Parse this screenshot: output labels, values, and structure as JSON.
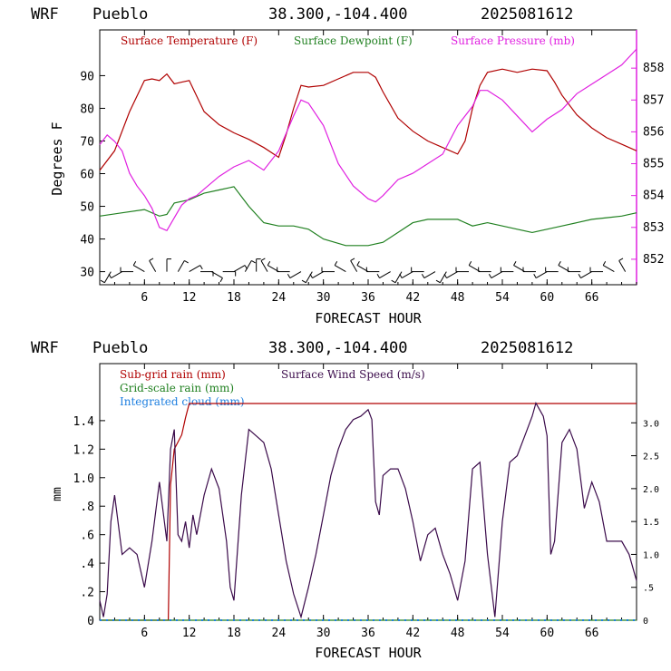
{
  "chart_data": [
    {
      "type": "line",
      "header": {
        "model": "WRF",
        "station": "Pueblo",
        "coords": "38.300,-104.400",
        "run": "2025081612"
      },
      "xlabel": "FORECAST HOUR",
      "ylabel": "Degrees F",
      "xlim": [
        0,
        72
      ],
      "xticks": [
        6,
        12,
        18,
        24,
        30,
        36,
        42,
        48,
        54,
        60,
        66
      ],
      "ylim": [
        26,
        104
      ],
      "yticks": [
        30,
        40,
        50,
        60,
        70,
        80,
        90
      ],
      "y2lim": [
        851.2,
        859.2
      ],
      "y2ticks": [
        852,
        853,
        854,
        855,
        856,
        857,
        858
      ],
      "colors": {
        "temperature": "#b00000",
        "dewpoint": "#208020",
        "pressure": "#e020e0",
        "barbs": "#000000"
      },
      "series": [
        {
          "name": "Surface Temperature (F)",
          "axis": "left",
          "x": [
            0,
            2,
            4,
            6,
            7,
            8,
            9,
            10,
            11,
            12,
            14,
            16,
            18,
            20,
            22,
            24,
            25,
            26,
            27,
            28,
            30,
            32,
            34,
            36,
            37,
            38,
            40,
            42,
            44,
            46,
            48,
            49,
            50,
            51,
            52,
            54,
            56,
            58,
            60,
            61,
            62,
            64,
            66,
            68,
            70,
            72
          ],
          "y": [
            61,
            67,
            79,
            88.5,
            89,
            88.5,
            90.5,
            87.5,
            88,
            88.5,
            79,
            75,
            72.5,
            70.5,
            68,
            65,
            72,
            80,
            87,
            86.5,
            87,
            89,
            91,
            91,
            89.5,
            85,
            77,
            73,
            70,
            68,
            66,
            70,
            80,
            87,
            91,
            92,
            91,
            92,
            91.5,
            88,
            84,
            78,
            74,
            71,
            69,
            67
          ]
        },
        {
          "name": "Surface Dewpoint (F)",
          "axis": "left",
          "x": [
            0,
            3,
            6,
            8,
            9,
            10,
            12,
            14,
            16,
            18,
            20,
            22,
            24,
            26,
            28,
            30,
            33,
            36,
            38,
            40,
            42,
            44,
            46,
            48,
            50,
            52,
            54,
            56,
            58,
            60,
            62,
            64,
            66,
            68,
            70,
            72
          ],
          "y": [
            47,
            48,
            49,
            47,
            47.5,
            51,
            52,
            54,
            55,
            56,
            50,
            45,
            44,
            44,
            43,
            40,
            38,
            38,
            39,
            42,
            45,
            46,
            46,
            46,
            44,
            45,
            44,
            43,
            42,
            43,
            44,
            45,
            46,
            46.5,
            47,
            48
          ]
        },
        {
          "name": "Surface Pressure (mb)",
          "axis": "right",
          "x": [
            0,
            1,
            2,
            3,
            4,
            5,
            6,
            7,
            8,
            9,
            10,
            11,
            12,
            13,
            14,
            16,
            18,
            20,
            22,
            24,
            26,
            27,
            28,
            30,
            32,
            34,
            36,
            37,
            38,
            40,
            42,
            44,
            46,
            48,
            50,
            51,
            52,
            54,
            56,
            58,
            60,
            62,
            64,
            66,
            68,
            70,
            72
          ],
          "y": [
            855.6,
            855.9,
            855.7,
            855.4,
            854.7,
            854.3,
            854.0,
            853.6,
            853.0,
            852.9,
            853.3,
            853.7,
            853.9,
            854.0,
            854.2,
            854.6,
            854.9,
            855.1,
            854.8,
            855.4,
            856.5,
            857.0,
            856.9,
            856.2,
            855.0,
            854.3,
            853.9,
            853.8,
            854.0,
            854.5,
            854.7,
            855.0,
            855.3,
            856.2,
            856.8,
            857.3,
            857.3,
            857.0,
            856.5,
            856.0,
            856.4,
            856.7,
            857.2,
            857.5,
            857.8,
            858.1,
            858.6
          ]
        },
        {
          "name": "Wind barbs",
          "axis": "left",
          "kind": "barbs",
          "x": [
            1.5,
            3,
            4.5,
            6,
            7.5,
            9,
            10.5,
            12,
            13.5,
            15,
            16.5,
            18,
            19.5,
            21,
            22.5,
            24,
            25.5,
            27,
            28.5,
            30,
            31.5,
            33,
            34.5,
            36,
            37.5,
            39,
            40.5,
            42,
            43.5,
            45,
            46.5,
            48,
            49.5,
            51,
            52.5,
            54,
            55.5,
            57,
            58.5,
            60,
            61.5,
            63,
            64.5,
            66,
            67.5,
            69,
            70.5
          ],
          "y": [
            30,
            30,
            30,
            30,
            30,
            30,
            30,
            30,
            30,
            30,
            30,
            30,
            30,
            30,
            30,
            30,
            30,
            30,
            30,
            30,
            30,
            30,
            30,
            30,
            30,
            30,
            30,
            30,
            30,
            30,
            30,
            30,
            30,
            30,
            30,
            30,
            30,
            30,
            30,
            30,
            30,
            30,
            30,
            30,
            30,
            30,
            30
          ],
          "dir_deg": [
            210,
            240,
            270,
            300,
            330,
            0,
            30,
            60,
            90,
            120,
            90,
            60,
            30,
            0,
            330,
            300,
            270,
            240,
            210,
            240,
            270,
            300,
            330,
            300,
            270,
            240,
            210,
            240,
            270,
            240,
            210,
            240,
            270,
            300,
            270,
            240,
            270,
            300,
            270,
            240,
            270,
            300,
            270,
            240,
            270,
            300,
            330
          ]
        }
      ]
    },
    {
      "type": "line",
      "header": {
        "model": "WRF",
        "station": "Pueblo",
        "coords": "38.300,-104.400",
        "run": "2025081612"
      },
      "xlabel": "FORECAST HOUR",
      "ylabel": "mm",
      "xlim": [
        0,
        72
      ],
      "xticks": [
        6,
        12,
        18,
        24,
        30,
        36,
        42,
        48,
        54,
        60,
        66
      ],
      "ylim": [
        0,
        1.8
      ],
      "yticks": [
        0,
        0.2,
        0.4,
        0.6,
        0.8,
        1.0,
        1.2,
        1.4
      ],
      "yticklabels": [
        "0",
        ".2",
        ".4",
        ".6",
        ".8",
        "1.0",
        "1.2",
        "1.4"
      ],
      "y2lim": [
        0,
        3.9
      ],
      "y2ticks": [
        0,
        0.5,
        1.0,
        1.5,
        2.0,
        2.5,
        3.0
      ],
      "y2ticklabels": [
        "0",
        ".5",
        "1.0",
        "1.5",
        "2.0",
        "2.5",
        "3.0"
      ],
      "colors": {
        "subgrid": "#b00000",
        "gridscale": "#208020",
        "cloud": "#2080e0",
        "wind": "#3a0a4a"
      },
      "series": [
        {
          "name": "Sub-grid rain (mm)",
          "axis": "left",
          "x": [
            0,
            9.2,
            9.5,
            10,
            11,
            11.5,
            12,
            20,
            40,
            72
          ],
          "y": [
            0,
            0,
            0.95,
            1.2,
            1.3,
            1.42,
            1.52,
            1.52,
            1.52,
            1.52
          ]
        },
        {
          "name": "Grid-scale rain (mm)",
          "axis": "left",
          "x": [
            0,
            72
          ],
          "y": [
            0,
            0
          ]
        },
        {
          "name": "Integrated cloud (mm)",
          "axis": "left",
          "dashed": true,
          "x": [
            0,
            72
          ],
          "y": [
            0,
            0
          ]
        },
        {
          "name": "Surface Wind Speed (m/s)",
          "axis": "right",
          "x": [
            0,
            0.5,
            1,
            1.5,
            2,
            3,
            4,
            5,
            6,
            7,
            8,
            9,
            9.5,
            10,
            10.5,
            11,
            11.5,
            12,
            12.5,
            13,
            14,
            15,
            16,
            17,
            17.5,
            18,
            19,
            20,
            21,
            22,
            23,
            24,
            25,
            26,
            27,
            28,
            29,
            30,
            31,
            32,
            33,
            34,
            35,
            36,
            36.5,
            37,
            37.5,
            38,
            39,
            40,
            41,
            42,
            43,
            44,
            45,
            46,
            47,
            48,
            49,
            50,
            51,
            52,
            53,
            54,
            55,
            56,
            57,
            58,
            58.5,
            59,
            59.5,
            60,
            60.5,
            61,
            62,
            63,
            64,
            65,
            66,
            67,
            68,
            69,
            70,
            71,
            72
          ],
          "y": [
            0.3,
            0.05,
            0.4,
            1.5,
            1.9,
            1.0,
            1.1,
            1.0,
            0.5,
            1.2,
            2.1,
            1.2,
            2.6,
            2.9,
            1.3,
            1.2,
            1.5,
            1.1,
            1.6,
            1.3,
            1.9,
            2.3,
            2.0,
            1.2,
            0.5,
            0.3,
            1.9,
            2.9,
            2.8,
            2.7,
            2.3,
            1.6,
            0.9,
            0.4,
            0.05,
            0.5,
            1.0,
            1.6,
            2.2,
            2.6,
            2.9,
            3.05,
            3.1,
            3.2,
            3.05,
            1.8,
            1.6,
            2.2,
            2.3,
            2.3,
            2.0,
            1.5,
            0.9,
            1.3,
            1.4,
            1.0,
            0.7,
            0.3,
            0.9,
            2.3,
            2.4,
            1.0,
            0.05,
            1.5,
            2.4,
            2.5,
            2.8,
            3.1,
            3.3,
            3.2,
            3.1,
            2.8,
            1.0,
            1.2,
            2.7,
            2.9,
            2.6,
            1.7,
            2.1,
            1.8,
            1.2,
            1.2,
            1.2,
            1.0,
            0.6
          ]
        }
      ]
    }
  ]
}
